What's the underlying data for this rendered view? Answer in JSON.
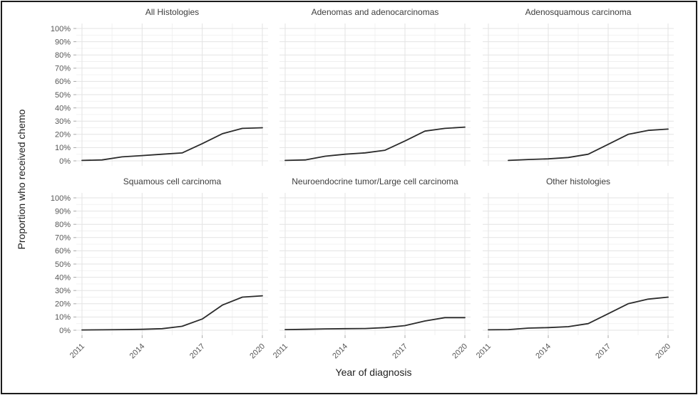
{
  "figure": {
    "ylabel": "Proportion who received chemo",
    "xlabel": "Year of diagnosis",
    "yticks": [
      "0%",
      "10%",
      "20%",
      "30%",
      "40%",
      "50%",
      "60%",
      "70%",
      "80%",
      "90%",
      "100%"
    ],
    "xticks": [
      "2011",
      "2014",
      "2017",
      "2020"
    ],
    "line_color": "#2b2b2b",
    "grid_major_color": "#e3e3e3",
    "grid_minor_color": "#f0f0f0",
    "tick_color": "#a8a8a8",
    "tick_label_color": "#575757",
    "facet_title_color": "#3d3d3d",
    "axis_title_color": "#212121",
    "border_color": "#1b1b1b",
    "background_color": "#ffffff"
  },
  "chart_data": [
    {
      "type": "line",
      "title": "All Histologies",
      "x": [
        2011,
        2012,
        2013,
        2014,
        2015,
        2016,
        2017,
        2018,
        2019,
        2020
      ],
      "y_percent": [
        0.3,
        0.7,
        3,
        4,
        5,
        6,
        13,
        20.5,
        24.5,
        25
      ],
      "xticks": [
        2011,
        2014,
        2017,
        2020
      ],
      "ylim": [
        0,
        100
      ],
      "ytick_step": 10
    },
    {
      "type": "line",
      "title": "Adenomas and adenocarcinomas",
      "x": [
        2011,
        2012,
        2013,
        2014,
        2015,
        2016,
        2017,
        2018,
        2019,
        2020
      ],
      "y_percent": [
        0.3,
        0.7,
        3.5,
        5,
        6,
        8,
        15,
        22.5,
        24.5,
        25.5
      ],
      "xticks": [
        2011,
        2014,
        2017,
        2020
      ],
      "ylim": [
        0,
        100
      ],
      "ytick_step": 10
    },
    {
      "type": "line",
      "title": "Adenosquamous carcinoma",
      "x": [
        2011,
        2012,
        2013,
        2014,
        2015,
        2016,
        2017,
        2018,
        2019,
        2020
      ],
      "y_percent": [
        null,
        0.3,
        1,
        1.5,
        2.5,
        5,
        12.5,
        20,
        23,
        24
      ],
      "xticks": [
        2011,
        2014,
        2017,
        2020
      ],
      "ylim": [
        0,
        100
      ],
      "ytick_step": 10
    },
    {
      "type": "line",
      "title": "Squamous cell carcinoma",
      "x": [
        2011,
        2012,
        2013,
        2014,
        2015,
        2016,
        2017,
        2018,
        2019,
        2020
      ],
      "y_percent": [
        0.2,
        0.3,
        0.5,
        0.7,
        1.2,
        3,
        8.5,
        19,
        25,
        26
      ],
      "xticks": [
        2011,
        2014,
        2017,
        2020
      ],
      "ylim": [
        0,
        100
      ],
      "ytick_step": 10
    },
    {
      "type": "line",
      "title": "Neuroendocrine tumor/Large cell carcinoma",
      "x": [
        2011,
        2012,
        2013,
        2014,
        2015,
        2016,
        2017,
        2018,
        2019,
        2020
      ],
      "y_percent": [
        0.5,
        0.7,
        1,
        1.2,
        1.3,
        2,
        3.5,
        7,
        9.5,
        9.5
      ],
      "xticks": [
        2011,
        2014,
        2017,
        2020
      ],
      "ylim": [
        0,
        100
      ],
      "ytick_step": 10
    },
    {
      "type": "line",
      "title": "Other histologies",
      "x": [
        2011,
        2012,
        2013,
        2014,
        2015,
        2016,
        2017,
        2018,
        2019,
        2020
      ],
      "y_percent": [
        0.3,
        0.5,
        1.6,
        2,
        2.7,
        5,
        12.5,
        20,
        23.5,
        25
      ],
      "xticks": [
        2011,
        2014,
        2017,
        2020
      ],
      "ylim": [
        0,
        100
      ],
      "ytick_step": 10
    }
  ]
}
